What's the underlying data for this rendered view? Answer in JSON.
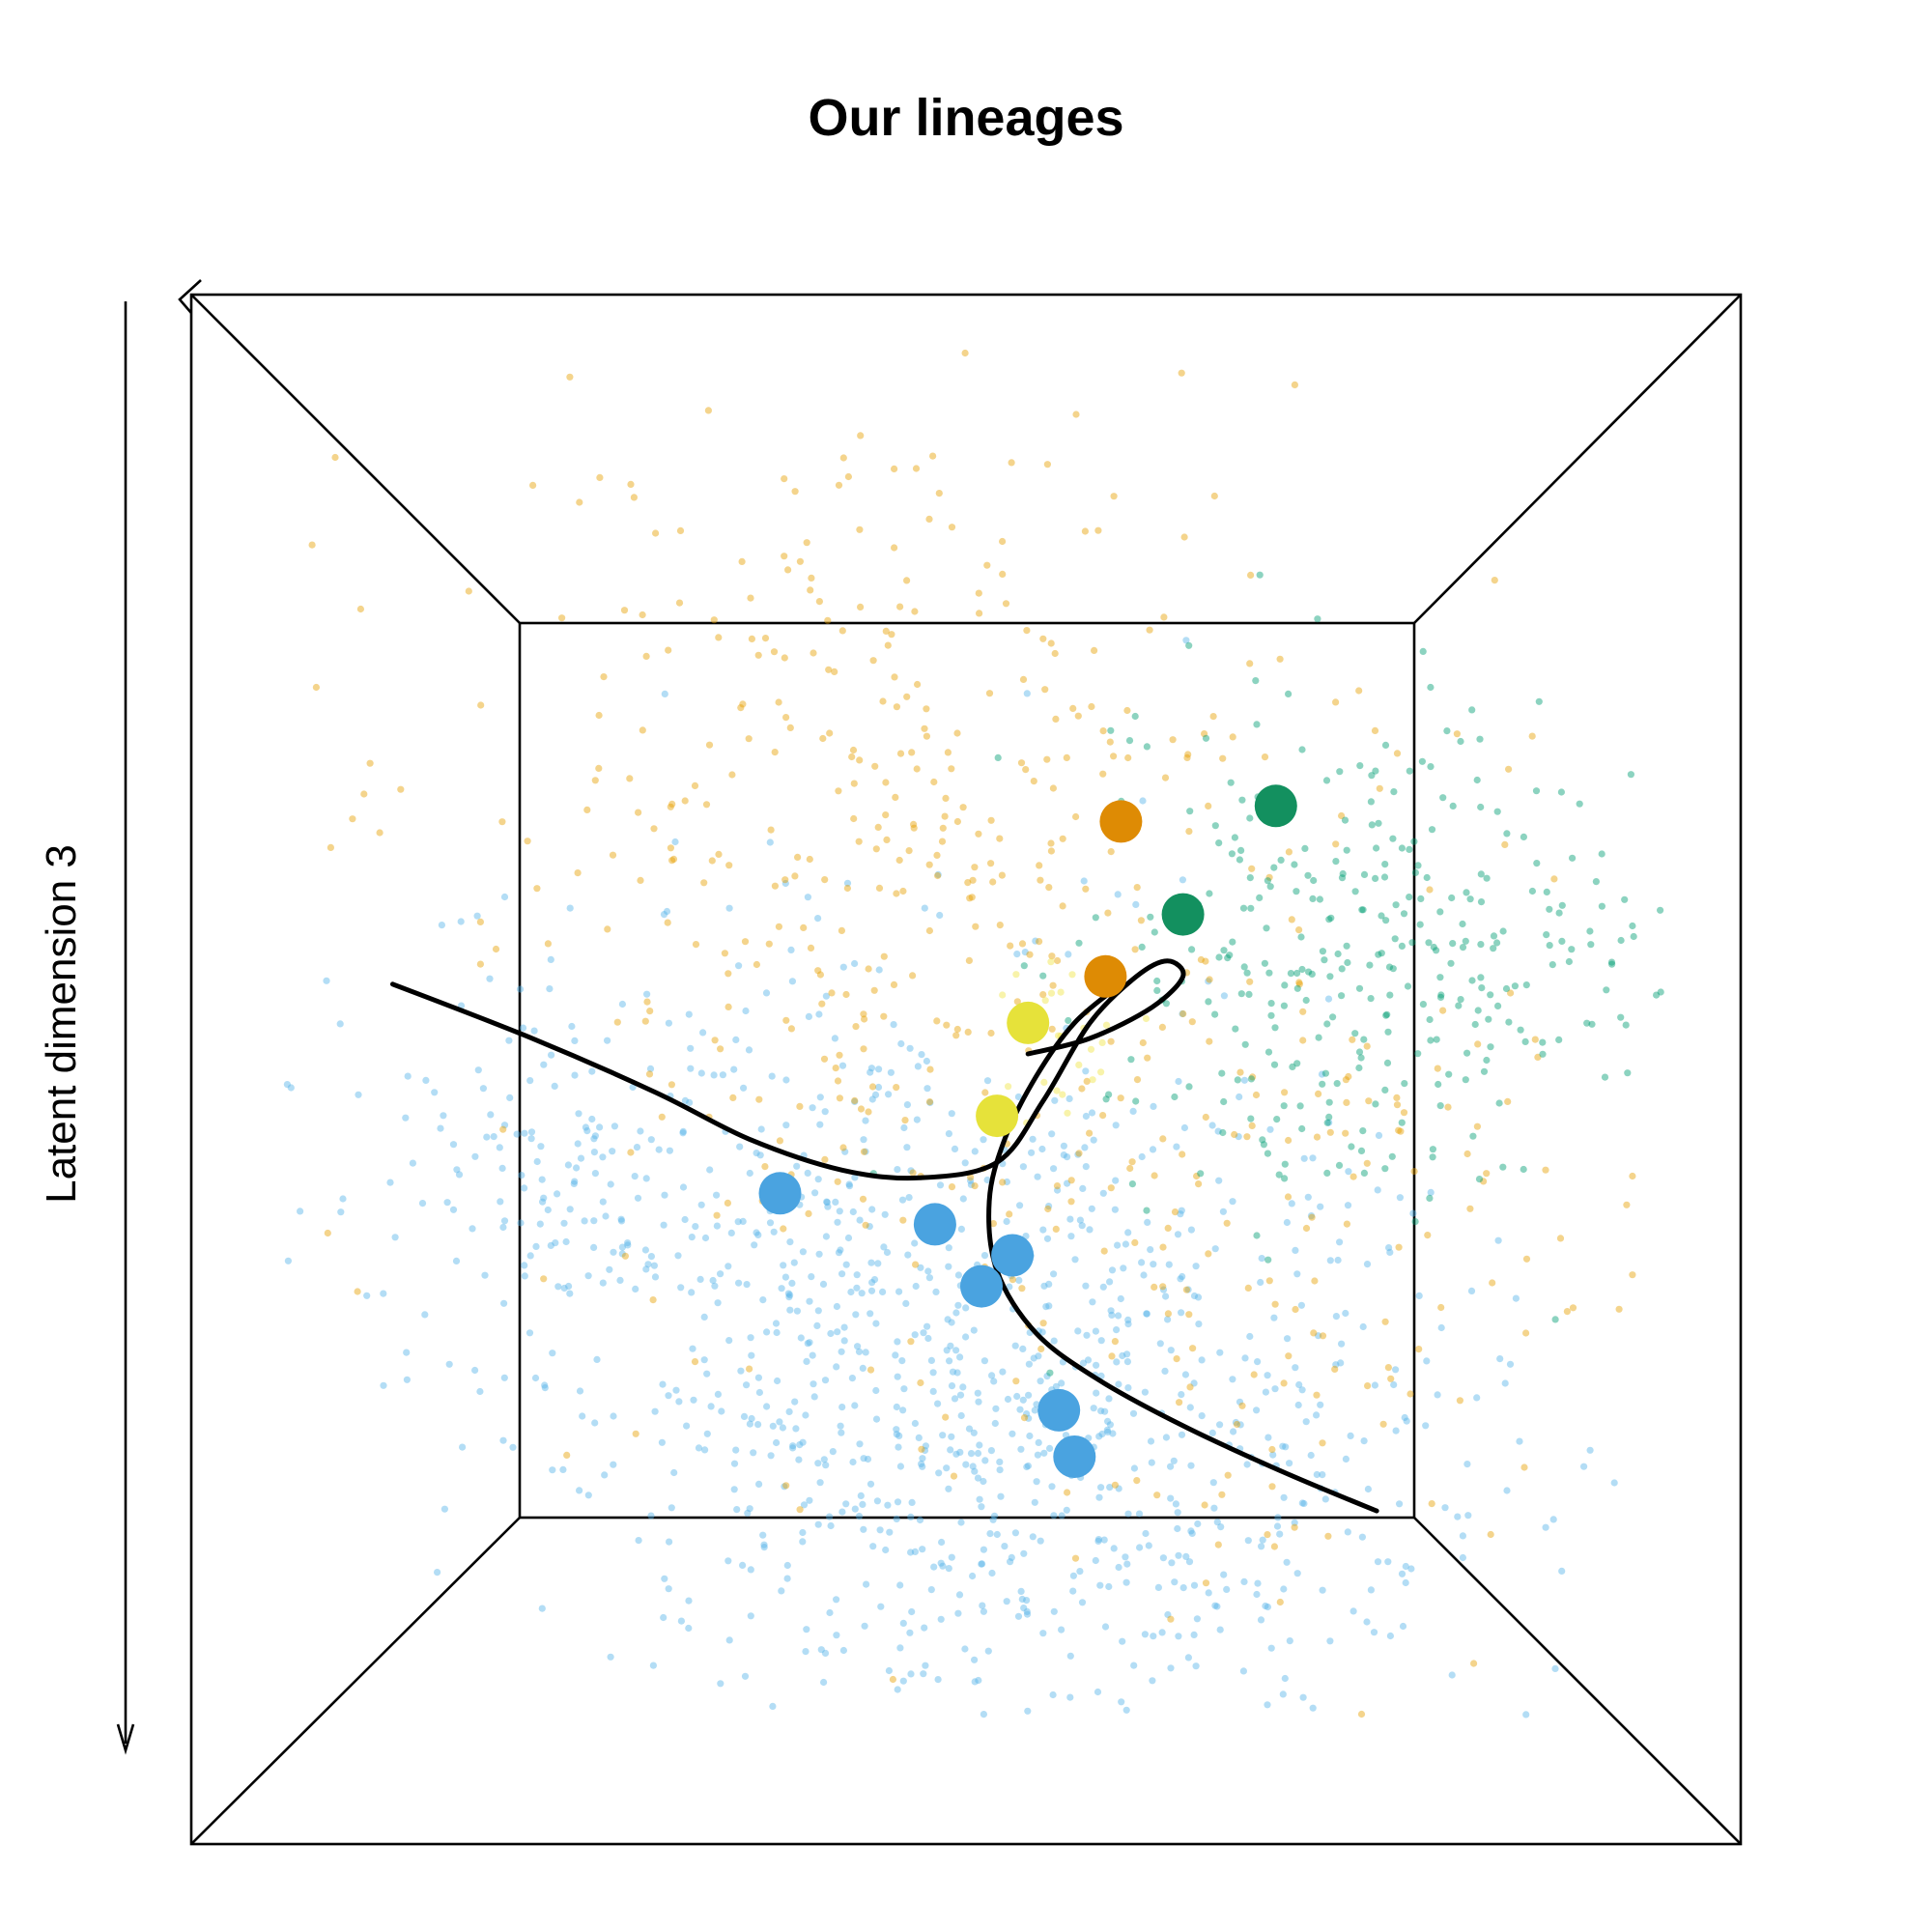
{
  "chart_data": {
    "type": "scatter",
    "title": "Our lineages",
    "zlabel": "Latent dimension 3",
    "colors": {
      "blue": "#56B4E9",
      "orange": "#E69F00",
      "green": "#009E73",
      "yellow": "#F0E442",
      "blue_center": "#4AA3E0",
      "orange_center": "#DE8B04",
      "green_center": "#13905F",
      "yellow_center": "#E6E23A",
      "curve": "#000000"
    },
    "clusters": [
      {
        "color": "blue",
        "count": 1050,
        "center": [
          0.52,
          0.7
        ],
        "spread": [
          0.17,
          0.12
        ],
        "tilt": 0.45
      },
      {
        "color": "blue",
        "count": 160,
        "center": [
          0.28,
          0.57
        ],
        "spread": [
          0.1,
          0.05
        ],
        "tilt": 0.2
      },
      {
        "color": "orange",
        "count": 420,
        "center": [
          0.45,
          0.35
        ],
        "spread": [
          0.14,
          0.16
        ],
        "tilt": 0.0
      },
      {
        "color": "orange",
        "count": 160,
        "center": [
          0.7,
          0.62
        ],
        "spread": [
          0.13,
          0.14
        ],
        "tilt": 0.0
      },
      {
        "color": "green",
        "count": 340,
        "center": [
          0.76,
          0.43
        ],
        "spread": [
          0.09,
          0.08
        ],
        "tilt": 0.1
      },
      {
        "color": "yellow",
        "count": 25,
        "center": [
          0.56,
          0.48
        ],
        "spread": [
          0.02,
          0.03
        ],
        "tilt": 0.0
      }
    ],
    "centers": [
      {
        "color": "blue",
        "x": 0.38,
        "y": 0.58
      },
      {
        "color": "blue",
        "x": 0.48,
        "y": 0.6
      },
      {
        "color": "blue",
        "x": 0.53,
        "y": 0.62
      },
      {
        "color": "blue",
        "x": 0.51,
        "y": 0.64
      },
      {
        "color": "blue",
        "x": 0.56,
        "y": 0.72
      },
      {
        "color": "blue",
        "x": 0.57,
        "y": 0.75
      },
      {
        "color": "orange",
        "x": 0.6,
        "y": 0.34
      },
      {
        "color": "orange",
        "x": 0.59,
        "y": 0.44
      },
      {
        "color": "green",
        "x": 0.7,
        "y": 0.33
      },
      {
        "color": "green",
        "x": 0.64,
        "y": 0.4
      },
      {
        "color": "yellow",
        "x": 0.54,
        "y": 0.47
      },
      {
        "color": "yellow",
        "x": 0.52,
        "y": 0.53
      }
    ],
    "curves": [
      [
        [
          0.13,
          0.445
        ],
        [
          0.22,
          0.48
        ],
        [
          0.3,
          0.515
        ],
        [
          0.36,
          0.545
        ],
        [
          0.42,
          0.565
        ],
        [
          0.47,
          0.57
        ],
        [
          0.52,
          0.56
        ],
        [
          0.55,
          0.52
        ],
        [
          0.58,
          0.47
        ],
        [
          0.61,
          0.44
        ],
        [
          0.63,
          0.43
        ],
        [
          0.64,
          0.44
        ],
        [
          0.62,
          0.46
        ],
        [
          0.58,
          0.48
        ],
        [
          0.54,
          0.49
        ]
      ],
      [
        [
          0.6,
          0.445
        ],
        [
          0.57,
          0.47
        ],
        [
          0.545,
          0.505
        ],
        [
          0.525,
          0.545
        ],
        [
          0.515,
          0.585
        ],
        [
          0.52,
          0.63
        ],
        [
          0.545,
          0.67
        ],
        [
          0.585,
          0.7
        ],
        [
          0.64,
          0.73
        ],
        [
          0.705,
          0.76
        ],
        [
          0.765,
          0.785
        ]
      ]
    ]
  }
}
